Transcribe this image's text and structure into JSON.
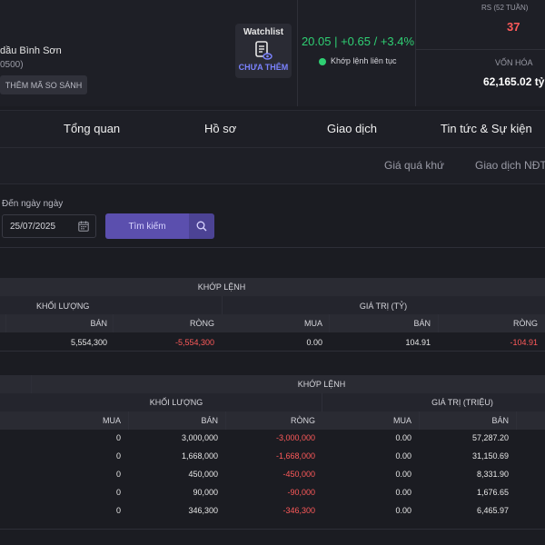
{
  "header": {
    "company_name": "dầu Bình Sơn",
    "company_code": "0500)",
    "compare_label": "THÊM MÃ SO SÁNH",
    "watchlist_title": "Watchlist",
    "watchlist_status": "CHƯA THÊM",
    "price_text": "20.05 | +0.65 / +3.4%",
    "match_label": "Khớp lệnh liên tục",
    "rs_label": "RS (52 TUẦN)",
    "rs_value": "37",
    "cap_label": "VỐN HÓA",
    "cap_value": "62,165.02 tỷ"
  },
  "tabs": [
    "Tổng quan",
    "Hồ sơ",
    "Giao dịch",
    "Tin tức & Sự kiện"
  ],
  "subtabs": [
    "Giá quá khứ",
    "Giao dịch NĐTNN"
  ],
  "filters": {
    "to_date_label": "Đến ngày ngày",
    "to_date_value": "25/07/2025",
    "search_label": "Tìm kiếm"
  },
  "table1": {
    "group_header": "KHỚP LỆNH",
    "volume_header": "KHỐI LƯỢNG",
    "value_header": "GIÁ TRỊ (TỶ)",
    "columns": [
      "BÁN",
      "RÒNG",
      "MUA",
      "BÁN",
      "RÒNG"
    ],
    "row": [
      "5,554,300",
      "-5,554,300",
      "0.00",
      "104.91",
      "-104.91"
    ]
  },
  "table2": {
    "group_header": "KHỚP LỆNH",
    "volume_header": "KHỐI LƯỢNG",
    "value_header": "GIÁ TRỊ (TRIỆU)",
    "columns": [
      "MUA",
      "BÁN",
      "RÒNG",
      "MUA",
      "BÁN"
    ],
    "rows": [
      [
        "0",
        "3,000,000",
        "-3,000,000",
        "0.00",
        "57,287.20"
      ],
      [
        "0",
        "1,668,000",
        "-1,668,000",
        "0.00",
        "31,150.69"
      ],
      [
        "0",
        "450,000",
        "-450,000",
        "0.00",
        "8,331.90"
      ],
      [
        "0",
        "90,000",
        "-90,000",
        "0.00",
        "1,676.65"
      ],
      [
        "0",
        "346,300",
        "-346,300",
        "0.00",
        "6,465.97"
      ]
    ]
  },
  "colors": {
    "up": "#2fcf73",
    "down": "#ff5a5a",
    "accent": "#5b4fae"
  }
}
